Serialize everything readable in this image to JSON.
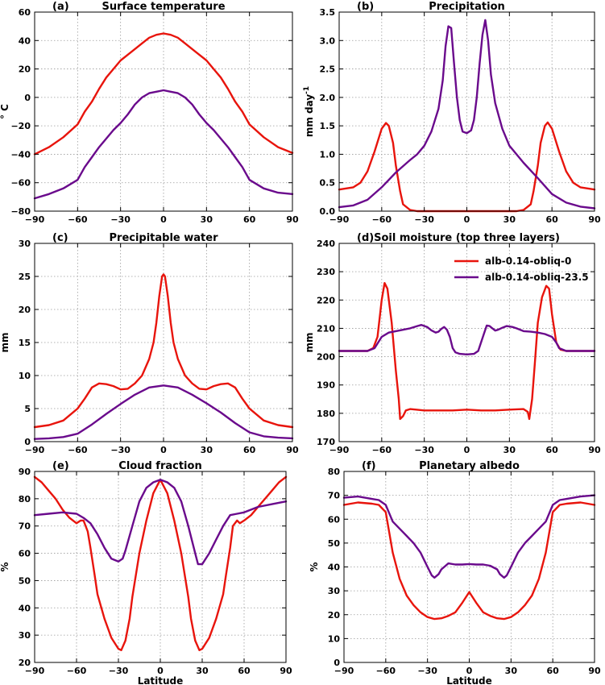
{
  "figure": {
    "colors": {
      "series1": "#e8140c",
      "series2": "#6a0a8c",
      "grid": "#9a9a9a",
      "axis": "#000000"
    },
    "legend_labels": [
      "alb-0.14-obliq-0",
      "alb-0.14-obliq-23.5"
    ],
    "legend_panel": 3
  },
  "chart_data": [
    {
      "type": "line",
      "panel_label": "(a)",
      "title": "Surface temperature",
      "xlabel": "",
      "ylabel": "° C",
      "xlim": [
        -90,
        90
      ],
      "ylim": [
        -80,
        60
      ],
      "xticks": [
        -90,
        -60,
        -30,
        0,
        30,
        60,
        90
      ],
      "yticks": [
        -80,
        -60,
        -40,
        -20,
        0,
        20,
        40,
        60
      ],
      "ytick_labels": [
        "−80",
        "−60",
        "−40",
        "−20",
        "0",
        "20",
        "40",
        "60"
      ],
      "grid": true,
      "series": [
        {
          "name": "alb-0.14-obliq-0",
          "x": [
            -90,
            -80,
            -70,
            -60,
            -55,
            -50,
            -45,
            -40,
            -35,
            -30,
            -25,
            -20,
            -15,
            -10,
            -5,
            0,
            5,
            10,
            15,
            20,
            25,
            30,
            35,
            40,
            45,
            50,
            55,
            60,
            70,
            80,
            90
          ],
          "y": [
            -40,
            -35,
            -28,
            -19,
            -10,
            -3,
            6,
            14,
            20,
            26,
            30,
            34,
            38,
            42,
            44,
            45,
            44,
            42,
            38,
            34,
            30,
            26,
            20,
            14,
            6,
            -3,
            -10,
            -19,
            -28,
            -35,
            -39
          ]
        },
        {
          "name": "alb-0.14-obliq-23.5",
          "x": [
            -90,
            -80,
            -70,
            -60,
            -55,
            -50,
            -45,
            -40,
            -35,
            -30,
            -25,
            -20,
            -15,
            -10,
            -5,
            0,
            5,
            10,
            15,
            20,
            25,
            30,
            35,
            40,
            45,
            50,
            55,
            60,
            70,
            80,
            90
          ],
          "y": [
            -71,
            -68,
            -64,
            -58,
            -49,
            -42,
            -35,
            -29,
            -23,
            -18,
            -12,
            -5,
            0,
            3,
            4,
            5,
            4,
            3,
            0,
            -5,
            -12,
            -18,
            -23,
            -29,
            -35,
            -42,
            -49,
            -58,
            -64,
            -67,
            -68
          ]
        }
      ]
    },
    {
      "type": "line",
      "panel_label": "(b)",
      "title": "Precipitation",
      "xlabel": "",
      "ylabel": "mm day",
      "ylabel_sup": "-1",
      "xlim": [
        -90,
        90
      ],
      "ylim": [
        0,
        3.5
      ],
      "xticks": [
        -90,
        -60,
        -30,
        0,
        30,
        60,
        90
      ],
      "yticks": [
        0,
        0.5,
        1.0,
        1.5,
        2.0,
        2.5,
        3.0,
        3.5
      ],
      "ytick_labels": [
        "0.0",
        "0.5",
        "1.0",
        "1.5",
        "2.0",
        "2.5",
        "3.0",
        "3.5"
      ],
      "grid": true,
      "series": [
        {
          "name": "alb-0.14-obliq-0",
          "x": [
            -90,
            -80,
            -75,
            -70,
            -65,
            -60,
            -57,
            -55,
            -52,
            -50,
            -47,
            -45,
            -40,
            -35,
            -30,
            -20,
            -10,
            0,
            10,
            20,
            30,
            35,
            40,
            45,
            47,
            50,
            52,
            55,
            57,
            60,
            65,
            70,
            75,
            80,
            90
          ],
          "y": [
            0.38,
            0.42,
            0.5,
            0.7,
            1.05,
            1.45,
            1.55,
            1.5,
            1.2,
            0.8,
            0.35,
            0.12,
            0.02,
            0,
            0,
            0,
            0,
            0,
            0,
            0,
            0,
            0,
            0.02,
            0.12,
            0.35,
            0.8,
            1.2,
            1.5,
            1.56,
            1.45,
            1.05,
            0.7,
            0.5,
            0.42,
            0.38
          ]
        },
        {
          "name": "alb-0.14-obliq-23.5",
          "x": [
            -90,
            -80,
            -70,
            -60,
            -50,
            -40,
            -35,
            -30,
            -25,
            -20,
            -17,
            -15,
            -13,
            -11,
            -9,
            -7,
            -5,
            -3,
            0,
            3,
            5,
            7,
            9,
            11,
            13,
            15,
            17,
            20,
            25,
            30,
            35,
            40,
            50,
            60,
            70,
            80,
            90
          ],
          "y": [
            0.07,
            0.1,
            0.2,
            0.42,
            0.68,
            0.9,
            1.0,
            1.15,
            1.4,
            1.8,
            2.3,
            2.9,
            3.25,
            3.22,
            2.6,
            2.0,
            1.6,
            1.4,
            1.37,
            1.42,
            1.6,
            2.0,
            2.6,
            3.1,
            3.36,
            3.0,
            2.4,
            1.9,
            1.45,
            1.15,
            1.0,
            0.85,
            0.58,
            0.3,
            0.15,
            0.08,
            0.05
          ]
        }
      ]
    },
    {
      "type": "line",
      "panel_label": "(c)",
      "title": "Precipitable water",
      "xlabel": "",
      "ylabel": "mm",
      "xlim": [
        -90,
        90
      ],
      "ylim": [
        0,
        30
      ],
      "xticks": [
        -90,
        -60,
        -30,
        0,
        30,
        60,
        90
      ],
      "yticks": [
        0,
        5,
        10,
        15,
        20,
        25,
        30
      ],
      "ytick_labels": [
        "0",
        "5",
        "10",
        "15",
        "20",
        "25",
        "30"
      ],
      "grid": true,
      "series": [
        {
          "name": "alb-0.14-obliq-0",
          "x": [
            -90,
            -80,
            -70,
            -60,
            -55,
            -50,
            -45,
            -40,
            -35,
            -30,
            -25,
            -20,
            -15,
            -10,
            -7,
            -5,
            -3,
            -1,
            0,
            1,
            3,
            5,
            7,
            10,
            15,
            20,
            25,
            30,
            35,
            40,
            45,
            50,
            55,
            60,
            70,
            80,
            90
          ],
          "y": [
            2.2,
            2.5,
            3.2,
            5.0,
            6.5,
            8.2,
            8.8,
            8.7,
            8.4,
            7.9,
            8.0,
            8.8,
            10.0,
            12.5,
            15.0,
            18.0,
            22.0,
            25.0,
            25.3,
            25.0,
            22.0,
            18.0,
            15.0,
            12.5,
            10.0,
            8.8,
            8.0,
            7.9,
            8.4,
            8.7,
            8.8,
            8.2,
            6.5,
            5.0,
            3.2,
            2.5,
            2.2
          ]
        },
        {
          "name": "alb-0.14-obliq-23.5",
          "x": [
            -90,
            -80,
            -70,
            -60,
            -50,
            -40,
            -30,
            -20,
            -10,
            0,
            10,
            20,
            30,
            40,
            50,
            60,
            70,
            80,
            90
          ],
          "y": [
            0.4,
            0.5,
            0.7,
            1.2,
            2.6,
            4.2,
            5.7,
            7.1,
            8.2,
            8.5,
            8.2,
            7.1,
            5.8,
            4.4,
            2.8,
            1.4,
            0.8,
            0.6,
            0.5
          ]
        }
      ]
    },
    {
      "type": "line",
      "panel_label": "(d)",
      "title": "Soil moisture (top three layers)",
      "xlabel": "",
      "ylabel": "mm",
      "xlim": [
        -90,
        90
      ],
      "ylim": [
        170,
        240
      ],
      "xticks": [
        -90,
        -60,
        -30,
        0,
        30,
        60,
        90
      ],
      "yticks": [
        170,
        180,
        190,
        200,
        210,
        220,
        230,
        240
      ],
      "ytick_labels": [
        "170",
        "180",
        "190",
        "200",
        "210",
        "220",
        "230",
        "240"
      ],
      "grid": true,
      "series": [
        {
          "name": "alb-0.14-obliq-0",
          "x": [
            -90,
            -70,
            -66,
            -63,
            -60,
            -58,
            -56,
            -53,
            -50,
            -48,
            -47,
            -45,
            -43,
            -40,
            -30,
            -20,
            -10,
            0,
            10,
            20,
            30,
            40,
            43,
            44,
            46,
            48,
            50,
            53,
            56,
            58,
            60,
            63,
            66,
            70,
            90
          ],
          "y": [
            202,
            202,
            203,
            207,
            220,
            226,
            224,
            212,
            195,
            185,
            178,
            179,
            181,
            181.5,
            181,
            181,
            181,
            181.3,
            181,
            181,
            181.3,
            181.5,
            180.5,
            178,
            185,
            198,
            212,
            221,
            225,
            224,
            215,
            205,
            202.5,
            202,
            202
          ]
        },
        {
          "name": "alb-0.14-obliq-23.5",
          "x": [
            -90,
            -70,
            -65,
            -60,
            -55,
            -50,
            -45,
            -40,
            -35,
            -32,
            -28,
            -25,
            -22,
            -20,
            -18,
            -16,
            -14,
            -12,
            -10,
            -8,
            -5,
            0,
            5,
            8,
            10,
            12,
            14,
            16,
            18,
            20,
            22,
            25,
            28,
            32,
            35,
            40,
            45,
            50,
            55,
            60,
            63,
            65,
            70,
            90
          ],
          "y": [
            202,
            202,
            203,
            207,
            208.5,
            209,
            209.5,
            210,
            210.8,
            211.2,
            210.5,
            209.3,
            208.5,
            208.8,
            209.8,
            210.5,
            209.5,
            207,
            203,
            201.5,
            201,
            200.8,
            201,
            202,
            205,
            208,
            211,
            210.8,
            210,
            209.2,
            209.5,
            210.2,
            210.8,
            210.5,
            210,
            209,
            208.8,
            208.5,
            208,
            207,
            205,
            203,
            202,
            202
          ]
        }
      ]
    },
    {
      "type": "line",
      "panel_label": "(e)",
      "title": "Cloud fraction",
      "xlabel": "Latitude",
      "ylabel": "%",
      "xlim": [
        -90,
        90
      ],
      "ylim": [
        20,
        90
      ],
      "xticks": [
        -90,
        -60,
        -30,
        0,
        30,
        60,
        90
      ],
      "yticks": [
        20,
        30,
        40,
        50,
        60,
        70,
        80,
        90
      ],
      "ytick_labels": [
        "20",
        "30",
        "40",
        "50",
        "60",
        "70",
        "80",
        "90"
      ],
      "grid": true,
      "series": [
        {
          "name": "alb-0.14-obliq-0",
          "x": [
            -90,
            -85,
            -80,
            -75,
            -70,
            -65,
            -60,
            -57,
            -55,
            -52,
            -50,
            -47,
            -45,
            -40,
            -35,
            -30,
            -28,
            -25,
            -22,
            -20,
            -15,
            -10,
            -5,
            0,
            5,
            10,
            15,
            20,
            22,
            25,
            28,
            30,
            35,
            40,
            45,
            47,
            50,
            52,
            55,
            57,
            60,
            65,
            70,
            75,
            80,
            85,
            90
          ],
          "y": [
            88,
            86,
            83,
            80,
            76,
            73,
            71,
            72,
            72,
            68,
            62,
            52,
            45,
            36,
            29,
            25,
            24.5,
            28,
            36,
            44,
            60,
            72,
            82,
            87,
            82,
            72,
            60,
            44,
            36,
            28,
            24.5,
            25,
            29,
            36,
            45,
            52,
            62,
            70,
            72,
            71,
            72,
            74,
            77,
            80,
            83,
            86,
            88
          ]
        },
        {
          "name": "alb-0.14-obliq-23.5",
          "x": [
            -90,
            -80,
            -70,
            -60,
            -55,
            -50,
            -45,
            -40,
            -35,
            -30,
            -27,
            -25,
            -20,
            -15,
            -10,
            -5,
            0,
            5,
            10,
            15,
            20,
            25,
            27,
            30,
            35,
            40,
            45,
            50,
            55,
            60,
            70,
            80,
            90
          ],
          "y": [
            74,
            74.5,
            75,
            74.5,
            73,
            71,
            67,
            62,
            58,
            57,
            58,
            61,
            70,
            79,
            84,
            86,
            87,
            86,
            84,
            79,
            70,
            60,
            56,
            56,
            60,
            65,
            70,
            74,
            74.5,
            75,
            77,
            78,
            79
          ]
        }
      ]
    },
    {
      "type": "line",
      "panel_label": "(f)",
      "title": "Planetary albedo",
      "xlabel": "Latitude",
      "ylabel": "%",
      "xlim": [
        -90,
        90
      ],
      "ylim": [
        0,
        80
      ],
      "xticks": [
        -90,
        -60,
        -30,
        0,
        30,
        60,
        90
      ],
      "yticks": [
        0,
        10,
        20,
        30,
        40,
        50,
        60,
        70,
        80
      ],
      "ytick_labels": [
        "0",
        "10",
        "20",
        "30",
        "40",
        "50",
        "60",
        "70",
        "80"
      ],
      "grid": true,
      "series": [
        {
          "name": "alb-0.14-obliq-0",
          "x": [
            -90,
            -80,
            -70,
            -65,
            -60,
            -55,
            -50,
            -45,
            -40,
            -35,
            -30,
            -25,
            -20,
            -15,
            -10,
            -5,
            0,
            5,
            10,
            15,
            20,
            25,
            30,
            35,
            40,
            45,
            50,
            55,
            60,
            65,
            70,
            80,
            90
          ],
          "y": [
            66,
            67,
            66.5,
            66,
            63,
            46,
            35,
            28,
            24,
            21,
            19,
            18.2,
            18.5,
            19.5,
            21,
            25,
            29.5,
            25,
            21,
            19.5,
            18.5,
            18.2,
            19,
            21,
            24,
            28,
            35,
            46,
            63,
            66,
            66.5,
            67,
            66
          ]
        },
        {
          "name": "alb-0.14-obliq-23.5",
          "x": [
            -90,
            -80,
            -70,
            -65,
            -60,
            -55,
            -50,
            -45,
            -40,
            -35,
            -30,
            -27,
            -25,
            -22,
            -20,
            -15,
            -10,
            -5,
            0,
            5,
            10,
            15,
            20,
            22,
            25,
            27,
            30,
            35,
            40,
            45,
            50,
            55,
            60,
            65,
            70,
            80,
            90
          ],
          "y": [
            69,
            69.5,
            68.5,
            68,
            66,
            59,
            56,
            53,
            50,
            46,
            40,
            36.5,
            35.5,
            37,
            39,
            41.5,
            41,
            41,
            41.2,
            41,
            41,
            40.5,
            39,
            37,
            35.5,
            36.5,
            40,
            46,
            50,
            53,
            56,
            59,
            66,
            68,
            68.5,
            69.5,
            70
          ]
        }
      ]
    }
  ]
}
